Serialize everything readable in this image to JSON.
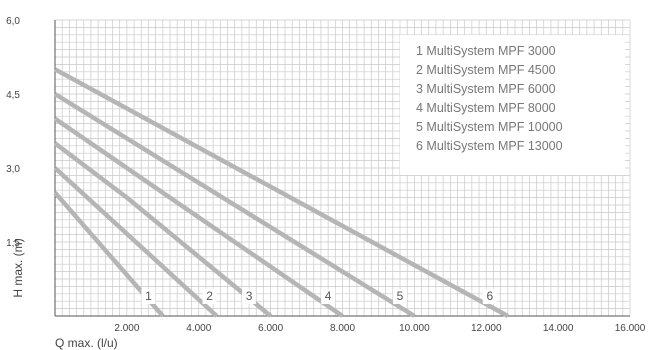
{
  "chart_data": {
    "type": "line",
    "xlabel": "Q max. (l/u)",
    "ylabel": "H max. (m)",
    "xlim": [
      0,
      16000
    ],
    "ylim": [
      0,
      6.0
    ],
    "x_ticks": [
      "2.000",
      "4.000",
      "6.000",
      "8.000",
      "10.000",
      "12.000",
      "14.000",
      "16.000"
    ],
    "x_tick_values": [
      2000,
      4000,
      6000,
      8000,
      10000,
      12000,
      14000,
      16000
    ],
    "y_ticks": [
      "1,5",
      "3,0",
      "4,5",
      "6,0"
    ],
    "y_tick_values": [
      1.5,
      3.0,
      4.5,
      6.0
    ],
    "grid": true,
    "legend_position": "top-right",
    "legend": [
      "1 MultiSystem MPF 3000",
      "2 MultiSystem MPF 4500",
      "3 MultiSystem MPF 6000",
      "4 MultiSystem MPF 8000",
      "5 MultiSystem MPF 10000",
      "6 MultiSystem MPF 13000"
    ],
    "series": [
      {
        "label": "1",
        "x": [
          0,
          3000
        ],
        "y": [
          2.5,
          0
        ]
      },
      {
        "label": "2",
        "x": [
          0,
          4500
        ],
        "y": [
          3.0,
          0
        ]
      },
      {
        "label": "3",
        "x": [
          0,
          2000,
          5000,
          6000
        ],
        "y": [
          3.5,
          2.4,
          0.6,
          0
        ]
      },
      {
        "label": "4",
        "x": [
          0,
          8000
        ],
        "y": [
          4.0,
          0
        ]
      },
      {
        "label": "5",
        "x": [
          0,
          10000
        ],
        "y": [
          4.5,
          0
        ]
      },
      {
        "label": "6",
        "x": [
          0,
          12600
        ],
        "y": [
          5.0,
          0
        ]
      }
    ],
    "label_x": [
      2600,
      4300,
      5400,
      7600,
      9600,
      12100
    ]
  }
}
